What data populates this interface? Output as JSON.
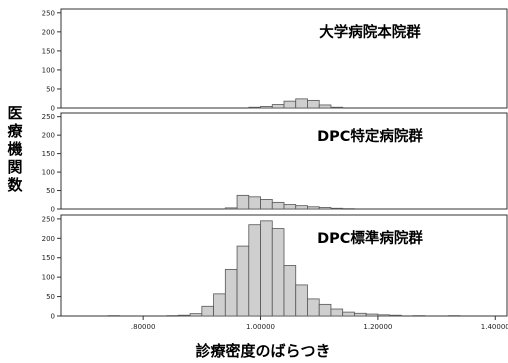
{
  "chart_data": {
    "type": "bar",
    "subtype": "histogram-small-multiples",
    "ylabel": "医療機関数",
    "xlabel": "診療密度のばらつき",
    "x_ticks": [
      ".80000",
      "1.00000",
      "1.20000",
      "1.40000"
    ],
    "y_ticks": [
      "0",
      "50",
      "100",
      "150",
      "200",
      "250"
    ],
    "xlim": [
      0.66,
      1.42
    ],
    "ylim": [
      0,
      260
    ],
    "bin_width": 0.02,
    "panels": [
      {
        "title": "大学病院本院群",
        "bins": [
          {
            "x": 0.99,
            "v": 2
          },
          {
            "x": 1.01,
            "v": 4
          },
          {
            "x": 1.03,
            "v": 9
          },
          {
            "x": 1.05,
            "v": 18
          },
          {
            "x": 1.07,
            "v": 24
          },
          {
            "x": 1.09,
            "v": 20
          },
          {
            "x": 1.11,
            "v": 8
          },
          {
            "x": 1.13,
            "v": 2
          }
        ]
      },
      {
        "title": "DPC特定病院群",
        "bins": [
          {
            "x": 0.95,
            "v": 3
          },
          {
            "x": 0.97,
            "v": 37
          },
          {
            "x": 0.99,
            "v": 33
          },
          {
            "x": 1.01,
            "v": 26
          },
          {
            "x": 1.03,
            "v": 18
          },
          {
            "x": 1.05,
            "v": 12
          },
          {
            "x": 1.07,
            "v": 9
          },
          {
            "x": 1.09,
            "v": 6
          },
          {
            "x": 1.11,
            "v": 4
          },
          {
            "x": 1.13,
            "v": 2
          },
          {
            "x": 1.15,
            "v": 1
          }
        ]
      },
      {
        "title": "DPC標準病院群",
        "bins": [
          {
            "x": 0.75,
            "v": 1
          },
          {
            "x": 0.85,
            "v": 1
          },
          {
            "x": 0.87,
            "v": 2
          },
          {
            "x": 0.89,
            "v": 6
          },
          {
            "x": 0.91,
            "v": 25
          },
          {
            "x": 0.93,
            "v": 57
          },
          {
            "x": 0.95,
            "v": 120
          },
          {
            "x": 0.97,
            "v": 180
          },
          {
            "x": 0.99,
            "v": 235
          },
          {
            "x": 1.01,
            "v": 245
          },
          {
            "x": 1.03,
            "v": 225
          },
          {
            "x": 1.05,
            "v": 130
          },
          {
            "x": 1.07,
            "v": 80
          },
          {
            "x": 1.09,
            "v": 44
          },
          {
            "x": 1.11,
            "v": 30
          },
          {
            "x": 1.13,
            "v": 18
          },
          {
            "x": 1.15,
            "v": 10
          },
          {
            "x": 1.17,
            "v": 7
          },
          {
            "x": 1.19,
            "v": 5
          },
          {
            "x": 1.21,
            "v": 3
          },
          {
            "x": 1.23,
            "v": 2
          },
          {
            "x": 1.27,
            "v": 1
          },
          {
            "x": 1.33,
            "v": 1
          }
        ]
      }
    ],
    "grid": false,
    "legend": "none"
  }
}
